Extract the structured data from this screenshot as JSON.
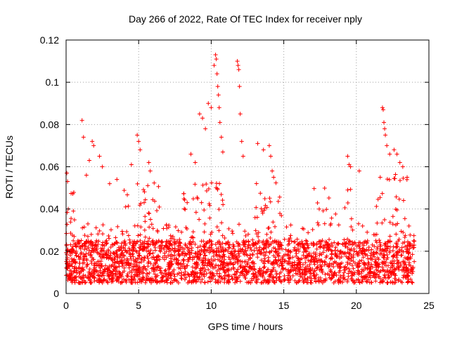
{
  "chart_data": {
    "type": "scatter",
    "title": "Day 266 of 2022, Rate Of TEC Index for receiver nply",
    "xlabel": "GPS time / hours",
    "ylabel": "ROTI / TECUs",
    "xlim": [
      0,
      25
    ],
    "ylim": [
      0,
      0.12
    ],
    "xticks": [
      0,
      5,
      10,
      15,
      20,
      25
    ],
    "xtick_labels": [
      "0",
      "5",
      "10",
      "15",
      "20",
      "25"
    ],
    "yticks": [
      0,
      0.02,
      0.04,
      0.06,
      0.08,
      0.1,
      0.12
    ],
    "ytick_labels": [
      "0",
      "0.02",
      "0.04",
      "0.06",
      "0.08",
      "0.1",
      "0.12"
    ],
    "grid": true,
    "marker": "+",
    "color": "#ff0000",
    "data_extent_x": [
      0,
      24
    ],
    "baseline_roti_range": [
      0.005,
      0.025
    ],
    "peak_points": [
      {
        "x": 0.05,
        "y": 0.057
      },
      {
        "x": 0.1,
        "y": 0.053
      },
      {
        "x": 0.15,
        "y": 0.04
      },
      {
        "x": 0.5,
        "y": 0.039
      },
      {
        "x": 1.1,
        "y": 0.082
      },
      {
        "x": 1.2,
        "y": 0.074
      },
      {
        "x": 1.4,
        "y": 0.056
      },
      {
        "x": 1.6,
        "y": 0.063
      },
      {
        "x": 1.8,
        "y": 0.072
      },
      {
        "x": 1.9,
        "y": 0.07
      },
      {
        "x": 2.3,
        "y": 0.065
      },
      {
        "x": 2.5,
        "y": 0.06
      },
      {
        "x": 3.0,
        "y": 0.052
      },
      {
        "x": 3.5,
        "y": 0.054
      },
      {
        "x": 4.5,
        "y": 0.061
      },
      {
        "x": 4.9,
        "y": 0.075
      },
      {
        "x": 5.0,
        "y": 0.072
      },
      {
        "x": 5.1,
        "y": 0.068
      },
      {
        "x": 5.7,
        "y": 0.062
      },
      {
        "x": 5.8,
        "y": 0.058
      },
      {
        "x": 8.6,
        "y": 0.066
      },
      {
        "x": 8.9,
        "y": 0.062
      },
      {
        "x": 9.2,
        "y": 0.085
      },
      {
        "x": 9.4,
        "y": 0.083
      },
      {
        "x": 9.6,
        "y": 0.078
      },
      {
        "x": 9.8,
        "y": 0.09
      },
      {
        "x": 10.0,
        "y": 0.088
      },
      {
        "x": 10.2,
        "y": 0.108
      },
      {
        "x": 10.3,
        "y": 0.113
      },
      {
        "x": 10.35,
        "y": 0.111
      },
      {
        "x": 10.4,
        "y": 0.104
      },
      {
        "x": 10.45,
        "y": 0.098
      },
      {
        "x": 10.5,
        "y": 0.094
      },
      {
        "x": 10.55,
        "y": 0.088
      },
      {
        "x": 10.6,
        "y": 0.081
      },
      {
        "x": 10.7,
        "y": 0.074
      },
      {
        "x": 10.8,
        "y": 0.067
      },
      {
        "x": 11.8,
        "y": 0.11
      },
      {
        "x": 11.85,
        "y": 0.108
      },
      {
        "x": 11.9,
        "y": 0.106
      },
      {
        "x": 11.95,
        "y": 0.098
      },
      {
        "x": 12.0,
        "y": 0.085
      },
      {
        "x": 12.1,
        "y": 0.072
      },
      {
        "x": 12.2,
        "y": 0.065
      },
      {
        "x": 13.2,
        "y": 0.071
      },
      {
        "x": 13.6,
        "y": 0.068
      },
      {
        "x": 14.0,
        "y": 0.07
      },
      {
        "x": 14.1,
        "y": 0.065
      },
      {
        "x": 14.2,
        "y": 0.058
      },
      {
        "x": 14.3,
        "y": 0.055
      },
      {
        "x": 19.4,
        "y": 0.065
      },
      {
        "x": 19.5,
        "y": 0.061
      },
      {
        "x": 19.6,
        "y": 0.06
      },
      {
        "x": 20.2,
        "y": 0.058
      },
      {
        "x": 21.8,
        "y": 0.088
      },
      {
        "x": 21.85,
        "y": 0.087
      },
      {
        "x": 21.9,
        "y": 0.081
      },
      {
        "x": 21.95,
        "y": 0.078
      },
      {
        "x": 22.0,
        "y": 0.075
      },
      {
        "x": 22.1,
        "y": 0.07
      },
      {
        "x": 22.3,
        "y": 0.066
      },
      {
        "x": 22.6,
        "y": 0.068
      },
      {
        "x": 22.8,
        "y": 0.066
      },
      {
        "x": 23.0,
        "y": 0.062
      },
      {
        "x": 23.2,
        "y": 0.06
      },
      {
        "x": 23.5,
        "y": 0.055
      }
    ]
  }
}
